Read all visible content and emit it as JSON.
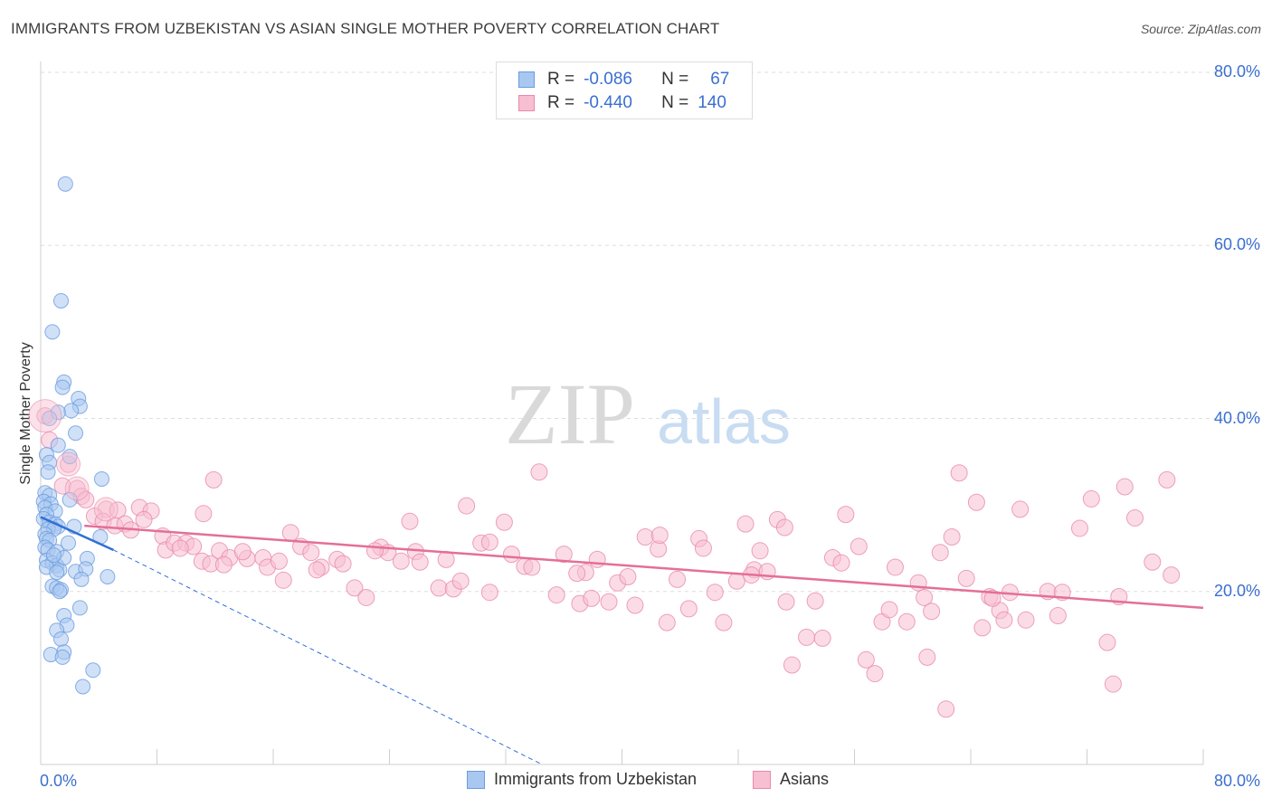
{
  "title": "IMMIGRANTS FROM UZBEKISTAN VS ASIAN SINGLE MOTHER POVERTY CORRELATION CHART",
  "source": "Source: ZipAtlas.com",
  "watermark": {
    "zip": "ZIP",
    "atlas": "atlas"
  },
  "legend": {
    "rows": [
      {
        "r_label": "R =",
        "r_value": "-0.086",
        "n_label": "N =",
        "n_value": "67",
        "color": "#a9c8f0",
        "border": "#6a9be0"
      },
      {
        "r_label": "R =",
        "r_value": "-0.440",
        "n_label": "N =",
        "n_value": "140",
        "color": "#f7bfd1",
        "border": "#e98aab"
      }
    ]
  },
  "bottom_legend": [
    {
      "label": "Immigrants from Uzbekistan",
      "color": "#a9c8f0",
      "border": "#6a9be0"
    },
    {
      "label": "Asians",
      "color": "#f7bfd1",
      "border": "#e98aab"
    }
  ],
  "chart_data": {
    "type": "scatter",
    "title": "IMMIGRANTS FROM UZBEKISTAN VS ASIAN SINGLE MOTHER POVERTY CORRELATION CHART",
    "xlabel": "",
    "ylabel": "Single Mother Poverty",
    "xlim": [
      0,
      80
    ],
    "ylim": [
      0,
      80
    ],
    "x_tick_labels": [
      "0.0%",
      "80.0%"
    ],
    "y_tick_labels": [
      "20.0%",
      "40.0%",
      "60.0%",
      "80.0%"
    ],
    "y_ticks": [
      20,
      40,
      60,
      80
    ],
    "grid": true,
    "legend_position": "top-center",
    "series": [
      {
        "name": "Immigrants from Uzbekistan",
        "color": "#6a9be0",
        "fill": "#a9c8f0",
        "trend": {
          "x": [
            0,
            5
          ],
          "y": [
            28.6,
            24.8
          ],
          "color": "#2f6fd6"
        },
        "trend_extension": {
          "x": [
            5,
            34.5
          ],
          "y": [
            24.8,
            0
          ],
          "color": "#2f6fd6"
        },
        "points": [
          [
            1.7,
            67.1
          ],
          [
            1.4,
            53.6
          ],
          [
            0.8,
            50.0
          ],
          [
            1.6,
            44.2
          ],
          [
            1.5,
            43.6
          ],
          [
            2.6,
            42.3
          ],
          [
            2.7,
            41.4
          ],
          [
            2.1,
            40.9
          ],
          [
            1.2,
            40.7
          ],
          [
            0.6,
            40.0
          ],
          [
            2.4,
            38.3
          ],
          [
            1.2,
            36.9
          ],
          [
            0.4,
            35.8
          ],
          [
            2.0,
            35.6
          ],
          [
            0.6,
            34.9
          ],
          [
            0.5,
            33.8
          ],
          [
            4.2,
            33.0
          ],
          [
            0.3,
            31.4
          ],
          [
            0.6,
            31.1
          ],
          [
            0.2,
            30.4
          ],
          [
            0.7,
            30.1
          ],
          [
            2.0,
            30.6
          ],
          [
            0.3,
            29.7
          ],
          [
            1.0,
            29.3
          ],
          [
            0.4,
            28.9
          ],
          [
            0.2,
            28.4
          ],
          [
            0.6,
            28.0
          ],
          [
            1.0,
            27.8
          ],
          [
            1.2,
            27.5
          ],
          [
            2.3,
            27.5
          ],
          [
            0.5,
            27.2
          ],
          [
            0.9,
            27.2
          ],
          [
            0.3,
            26.6
          ],
          [
            4.1,
            26.3
          ],
          [
            0.4,
            26.1
          ],
          [
            0.6,
            25.9
          ],
          [
            1.9,
            25.6
          ],
          [
            0.3,
            25.1
          ],
          [
            0.5,
            24.8
          ],
          [
            1.1,
            24.6
          ],
          [
            3.2,
            23.8
          ],
          [
            0.4,
            23.6
          ],
          [
            0.8,
            23.3
          ],
          [
            1.1,
            23.0
          ],
          [
            0.4,
            22.8
          ],
          [
            1.3,
            22.5
          ],
          [
            1.1,
            22.2
          ],
          [
            2.4,
            22.3
          ],
          [
            3.1,
            22.6
          ],
          [
            4.6,
            21.7
          ],
          [
            2.8,
            21.4
          ],
          [
            0.8,
            20.6
          ],
          [
            1.1,
            20.4
          ],
          [
            1.4,
            20.2
          ],
          [
            1.3,
            20.0
          ],
          [
            2.7,
            18.1
          ],
          [
            1.6,
            17.2
          ],
          [
            1.8,
            16.1
          ],
          [
            1.1,
            15.5
          ],
          [
            1.4,
            14.5
          ],
          [
            1.6,
            13.0
          ],
          [
            0.7,
            12.7
          ],
          [
            1.5,
            12.4
          ],
          [
            3.6,
            10.9
          ],
          [
            2.9,
            9.0
          ],
          [
            1.6,
            23.9
          ],
          [
            0.9,
            24.2
          ]
        ]
      },
      {
        "name": "Asians",
        "color": "#e98aab",
        "fill": "#f7bfd1",
        "trend": {
          "x": [
            3,
            80
          ],
          "y": [
            27.6,
            18.1
          ],
          "color": "#e46f98"
        },
        "points": [
          [
            0.3,
            40.3
          ],
          [
            0.6,
            37.5
          ],
          [
            1.9,
            34.7
          ],
          [
            1.5,
            32.2
          ],
          [
            2.5,
            31.9
          ],
          [
            2.8,
            31.0
          ],
          [
            3.1,
            30.6
          ],
          [
            4.5,
            29.5
          ],
          [
            3.7,
            28.7
          ],
          [
            4.3,
            28.1
          ],
          [
            5.3,
            29.4
          ],
          [
            6.8,
            29.7
          ],
          [
            7.6,
            29.3
          ],
          [
            5.1,
            27.6
          ],
          [
            5.8,
            27.8
          ],
          [
            6.2,
            27.1
          ],
          [
            7.1,
            28.3
          ],
          [
            11.9,
            32.9
          ],
          [
            11.2,
            29.0
          ],
          [
            8.4,
            26.4
          ],
          [
            8.6,
            24.8
          ],
          [
            9.2,
            25.6
          ],
          [
            10.0,
            25.6
          ],
          [
            10.5,
            25.2
          ],
          [
            9.6,
            25.0
          ],
          [
            11.1,
            23.5
          ],
          [
            11.7,
            23.2
          ],
          [
            12.3,
            24.7
          ],
          [
            13.0,
            23.9
          ],
          [
            12.6,
            23.1
          ],
          [
            14.2,
            23.8
          ],
          [
            15.3,
            23.9
          ],
          [
            13.9,
            24.6
          ],
          [
            15.6,
            22.8
          ],
          [
            16.4,
            23.5
          ],
          [
            17.2,
            26.8
          ],
          [
            17.9,
            25.2
          ],
          [
            18.6,
            24.5
          ],
          [
            19.3,
            22.8
          ],
          [
            20.4,
            23.7
          ],
          [
            20.8,
            23.2
          ],
          [
            16.7,
            21.3
          ],
          [
            19.0,
            22.5
          ],
          [
            21.6,
            20.4
          ],
          [
            22.4,
            19.3
          ],
          [
            23.4,
            25.1
          ],
          [
            23.9,
            24.5
          ],
          [
            24.8,
            23.5
          ],
          [
            23.0,
            24.7
          ],
          [
            25.8,
            24.6
          ],
          [
            25.4,
            28.1
          ],
          [
            26.1,
            23.4
          ],
          [
            27.4,
            20.4
          ],
          [
            28.4,
            20.3
          ],
          [
            28.9,
            21.2
          ],
          [
            27.9,
            23.7
          ],
          [
            29.3,
            29.9
          ],
          [
            30.3,
            25.6
          ],
          [
            30.9,
            25.7
          ],
          [
            30.9,
            19.9
          ],
          [
            31.9,
            28.0
          ],
          [
            32.4,
            24.3
          ],
          [
            33.3,
            22.9
          ],
          [
            33.8,
            22.8
          ],
          [
            34.3,
            33.8
          ],
          [
            35.5,
            19.6
          ],
          [
            36.0,
            24.3
          ],
          [
            37.1,
            18.6
          ],
          [
            37.5,
            22.2
          ],
          [
            37.9,
            19.2
          ],
          [
            38.3,
            23.7
          ],
          [
            39.1,
            18.8
          ],
          [
            39.7,
            21.0
          ],
          [
            40.4,
            21.7
          ],
          [
            36.9,
            22.1
          ],
          [
            40.9,
            18.4
          ],
          [
            41.6,
            26.3
          ],
          [
            42.5,
            24.9
          ],
          [
            42.6,
            26.5
          ],
          [
            43.1,
            16.4
          ],
          [
            43.8,
            21.4
          ],
          [
            44.6,
            18.0
          ],
          [
            45.3,
            26.1
          ],
          [
            45.6,
            25.0
          ],
          [
            46.4,
            19.9
          ],
          [
            47.0,
            16.4
          ],
          [
            47.9,
            21.2
          ],
          [
            48.5,
            27.8
          ],
          [
            49.5,
            24.7
          ],
          [
            49.1,
            22.5
          ],
          [
            50.0,
            22.3
          ],
          [
            48.9,
            21.9
          ],
          [
            50.7,
            28.3
          ],
          [
            51.3,
            18.8
          ],
          [
            51.7,
            11.5
          ],
          [
            52.7,
            14.7
          ],
          [
            53.3,
            18.9
          ],
          [
            51.2,
            27.4
          ],
          [
            53.8,
            14.6
          ],
          [
            54.5,
            23.9
          ],
          [
            55.1,
            23.3
          ],
          [
            55.4,
            28.9
          ],
          [
            56.3,
            25.2
          ],
          [
            56.8,
            12.1
          ],
          [
            57.4,
            10.5
          ],
          [
            57.9,
            16.5
          ],
          [
            58.4,
            17.9
          ],
          [
            58.8,
            22.8
          ],
          [
            59.6,
            16.5
          ],
          [
            60.4,
            21.0
          ],
          [
            60.8,
            19.3
          ],
          [
            61.3,
            17.7
          ],
          [
            61.9,
            24.5
          ],
          [
            62.7,
            26.3
          ],
          [
            61.0,
            12.4
          ],
          [
            62.3,
            6.4
          ],
          [
            63.2,
            33.7
          ],
          [
            63.7,
            21.5
          ],
          [
            64.4,
            30.3
          ],
          [
            64.8,
            15.8
          ],
          [
            65.3,
            19.4
          ],
          [
            66.0,
            17.8
          ],
          [
            66.7,
            19.9
          ],
          [
            66.3,
            16.7
          ],
          [
            65.5,
            19.2
          ],
          [
            67.4,
            29.5
          ],
          [
            67.8,
            16.7
          ],
          [
            69.3,
            20.0
          ],
          [
            70.3,
            19.9
          ],
          [
            70.0,
            17.2
          ],
          [
            71.5,
            27.3
          ],
          [
            72.3,
            30.7
          ],
          [
            73.4,
            14.1
          ],
          [
            73.8,
            9.3
          ],
          [
            74.6,
            32.1
          ],
          [
            74.2,
            19.4
          ],
          [
            75.3,
            28.5
          ],
          [
            76.5,
            23.4
          ],
          [
            77.5,
            32.9
          ],
          [
            77.8,
            21.9
          ]
        ]
      }
    ]
  }
}
